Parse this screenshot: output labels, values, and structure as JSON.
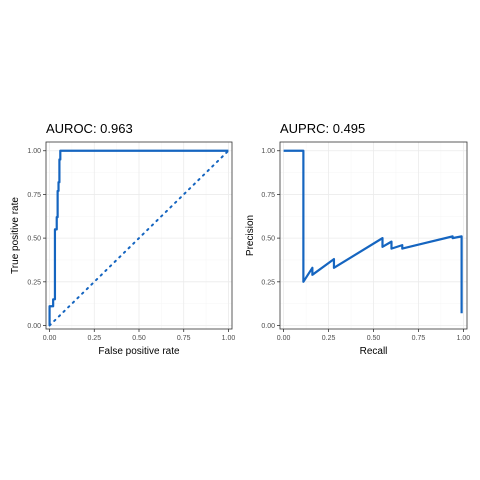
{
  "chart_data": [
    {
      "type": "line",
      "title": "AUROC: 0.963",
      "xlabel": "False positive rate",
      "ylabel": "True positive rate",
      "xlim": [
        -0.02,
        1.02
      ],
      "ylim": [
        -0.02,
        1.05
      ],
      "xticks": [
        "0.00",
        "0.25",
        "0.50",
        "0.75",
        "1.00"
      ],
      "yticks": [
        "0.00",
        "0.25",
        "0.50",
        "0.75",
        "1.00"
      ],
      "grid": true,
      "color": "#1565C0",
      "series": [
        {
          "style": "solid",
          "x": [
            0.0,
            0.0,
            0.0,
            0.02,
            0.02,
            0.03,
            0.03,
            0.04,
            0.04,
            0.045,
            0.045,
            0.05,
            0.05,
            0.055,
            0.055,
            0.06,
            0.06,
            0.065,
            0.065,
            1.0
          ],
          "y": [
            0.0,
            0.05,
            0.11,
            0.11,
            0.15,
            0.15,
            0.55,
            0.55,
            0.62,
            0.62,
            0.77,
            0.77,
            0.82,
            0.82,
            0.95,
            0.95,
            1.0,
            1.0,
            1.0,
            1.0
          ]
        },
        {
          "style": "dotted",
          "x": [
            0.0,
            1.0
          ],
          "y": [
            0.0,
            1.0
          ]
        }
      ]
    },
    {
      "type": "line",
      "title": "AUPRC: 0.495",
      "xlabel": "Recall",
      "ylabel": "Precision",
      "xlim": [
        -0.02,
        1.02
      ],
      "ylim": [
        -0.02,
        1.05
      ],
      "xticks": [
        "0.00",
        "0.25",
        "0.50",
        "0.75",
        "1.00"
      ],
      "yticks": [
        "0.00",
        "0.25",
        "0.50",
        "0.75",
        "1.00"
      ],
      "grid": true,
      "color": "#1565C0",
      "series": [
        {
          "style": "solid",
          "x": [
            0.0,
            0.11,
            0.11,
            0.11,
            0.16,
            0.16,
            0.28,
            0.28,
            0.55,
            0.55,
            0.6,
            0.6,
            0.66,
            0.66,
            0.78,
            0.78,
            0.94,
            0.94,
            0.99,
            0.99
          ],
          "y": [
            1.0,
            1.0,
            0.5,
            0.25,
            0.33,
            0.29,
            0.38,
            0.33,
            0.5,
            0.45,
            0.48,
            0.44,
            0.46,
            0.44,
            0.47,
            0.47,
            0.51,
            0.5,
            0.51,
            0.07
          ]
        }
      ]
    }
  ]
}
